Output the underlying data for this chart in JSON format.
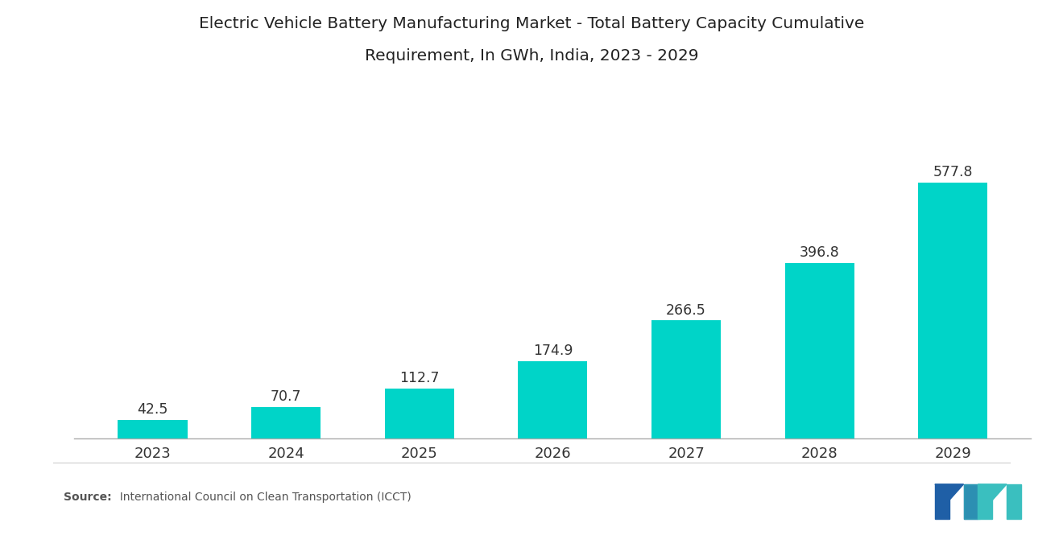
{
  "title_line1": "Electric Vehicle Battery Manufacturing Market - Total Battery Capacity Cumulative",
  "title_line2": "Requirement, In GWh, India, 2023 - 2029",
  "categories": [
    "2023",
    "2024",
    "2025",
    "2026",
    "2027",
    "2028",
    "2029"
  ],
  "values": [
    42.5,
    70.7,
    112.7,
    174.9,
    266.5,
    396.8,
    577.8
  ],
  "bar_color": "#00D4C8",
  "background_color": "#ffffff",
  "title_fontsize": 14.5,
  "label_fontsize": 12.5,
  "tick_fontsize": 13,
  "source_bold": "Source:",
  "source_normal": "  International Council on Clean Transportation (ICCT)",
  "ylim": [
    0,
    700
  ],
  "bar_width": 0.52
}
